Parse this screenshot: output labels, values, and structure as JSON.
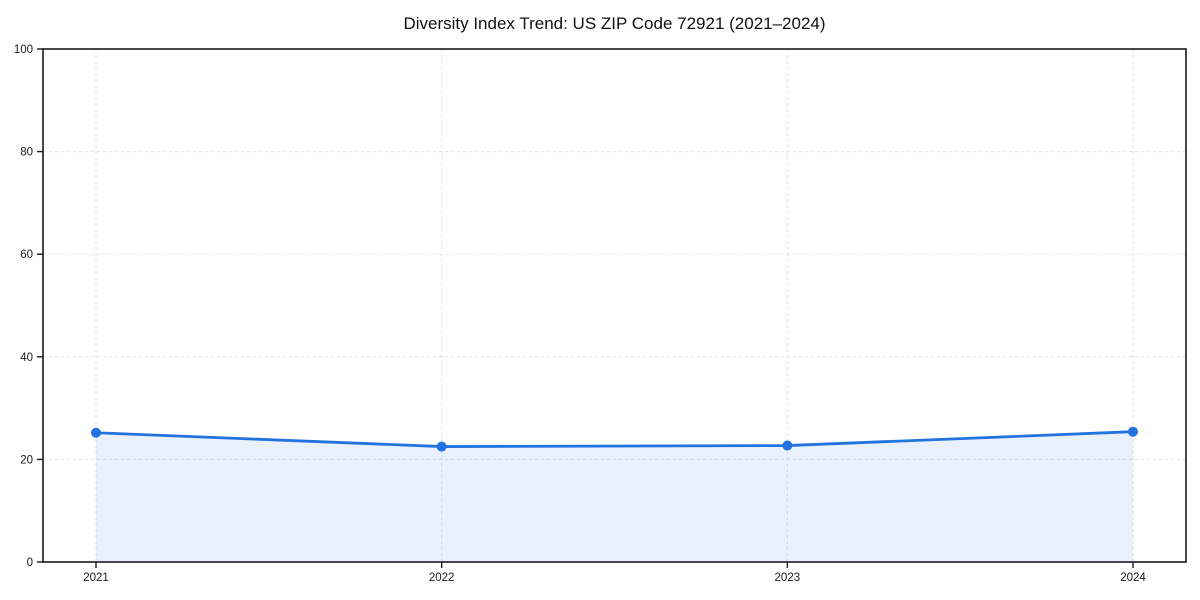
{
  "chart_data": {
    "type": "area",
    "title": "Diversity Index Trend: US ZIP Code 72921 (2021–2024)",
    "xlabel": "",
    "ylabel": "",
    "categories": [
      "2021",
      "2022",
      "2023",
      "2024"
    ],
    "x": [
      2021,
      2022,
      2023,
      2024
    ],
    "series": [
      {
        "name": "Diversity Index",
        "values": [
          25.2,
          22.5,
          22.7,
          25.4
        ]
      }
    ],
    "ylim": [
      0,
      100
    ],
    "yticks": [
      0,
      20,
      40,
      60,
      80,
      100
    ],
    "grid": true,
    "grid_style": "dashed",
    "legend_position": "none",
    "marker": "circle",
    "colors": {
      "line": "#2273e0",
      "marker": "#2273e0",
      "fill": "rgba(34, 115, 224, 0.10)",
      "grid": "#e2e2e2",
      "spine": "#1a1a1a",
      "tick_text": "#1a1a1a",
      "title_text": "#111111",
      "background": "#ffffff"
    }
  }
}
